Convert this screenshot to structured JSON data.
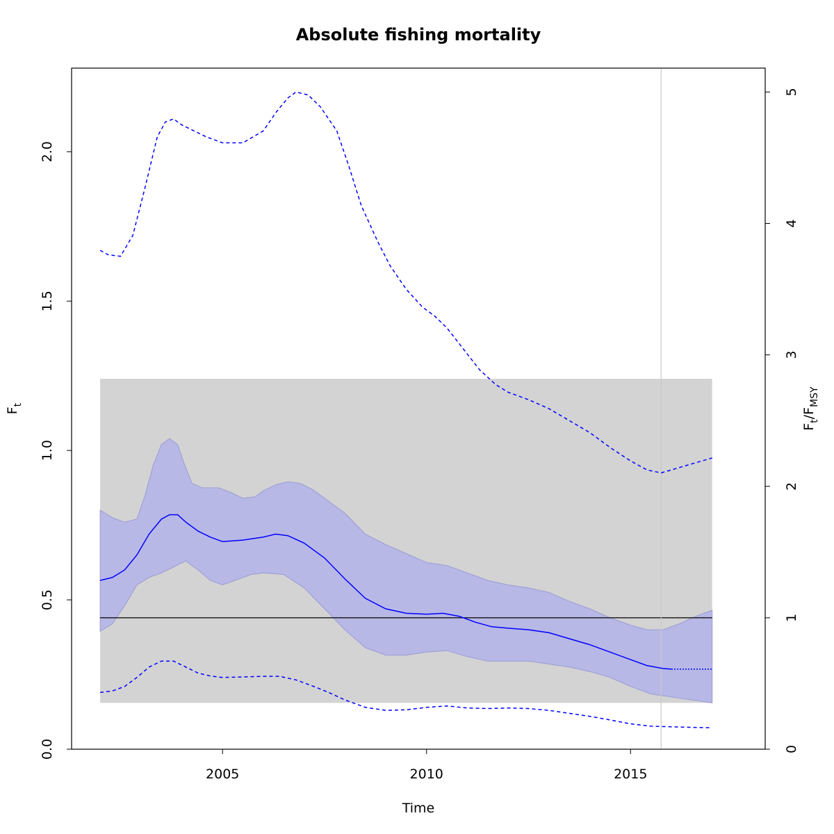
{
  "chart_data": {
    "type": "line",
    "title": "Absolute fishing mortality",
    "xlabel": "Time",
    "ylabel": "F",
    "ylabel_sub": "t",
    "y2label_main": "F",
    "y2label_sub1": "t",
    "y2label_sep": "/F",
    "y2label_sub2": "MSY",
    "xlim": [
      2001.3,
      2018.3
    ],
    "ylim": [
      0,
      2.28
    ],
    "x_ticks": [
      2005,
      2010,
      2015
    ],
    "y_ticks": [
      0.0,
      0.5,
      1.0,
      1.5,
      2.0
    ],
    "y_tick_labels": [
      "0.0",
      "0.5",
      "1.0",
      "1.5",
      "2.0"
    ],
    "y2_ticks": [
      0,
      1,
      2,
      3,
      4,
      5
    ],
    "fmsy": 0.44,
    "reference_band": {
      "x": [
        2002.0,
        2017.0
      ],
      "y": [
        0.155,
        1.24
      ],
      "color": "#d3d3d3"
    },
    "vertical_line_x": 2015.75,
    "colors": {
      "series": "#0000ff",
      "ci_fill": "#b8b8e6",
      "ci_edge": "#9a9ad6",
      "band": "#d3d3d3",
      "vline": "#c8c8c8",
      "ref": "#000000"
    },
    "series": [
      {
        "role": "estimate",
        "style": "solid",
        "x": [
          2002.0,
          2002.3,
          2002.6,
          2002.9,
          2003.2,
          2003.5,
          2003.7,
          2003.9,
          2004.1,
          2004.4,
          2004.7,
          2005.0,
          2005.5,
          2006.0,
          2006.3,
          2006.6,
          2007.0,
          2007.5,
          2008.0,
          2008.5,
          2009.0,
          2009.5,
          2010.0,
          2010.4,
          2010.8,
          2011.2,
          2011.6,
          2012.0,
          2012.5,
          2013.0,
          2013.5,
          2014.0,
          2014.5,
          2015.0,
          2015.4,
          2015.8,
          2016.0
        ],
        "y": [
          0.565,
          0.575,
          0.6,
          0.65,
          0.72,
          0.77,
          0.785,
          0.785,
          0.76,
          0.73,
          0.71,
          0.695,
          0.7,
          0.71,
          0.72,
          0.715,
          0.69,
          0.64,
          0.57,
          0.505,
          0.47,
          0.455,
          0.452,
          0.455,
          0.445,
          0.425,
          0.41,
          0.405,
          0.4,
          0.39,
          0.37,
          0.35,
          0.325,
          0.3,
          0.28,
          0.27,
          0.268
        ]
      },
      {
        "role": "prediction",
        "style": "dotted",
        "x": [
          2016.0,
          2017.0
        ],
        "y": [
          0.268,
          0.268
        ]
      },
      {
        "role": "ci_upper",
        "style": "dashed",
        "x": [
          2002.0,
          2002.2,
          2002.5,
          2002.8,
          2003.1,
          2003.4,
          2003.6,
          2003.8,
          2004.0,
          2004.3,
          2004.6,
          2005.0,
          2005.5,
          2006.0,
          2006.3,
          2006.6,
          2006.8,
          2007.1,
          2007.4,
          2007.8,
          2008.1,
          2008.4,
          2008.8,
          2009.1,
          2009.5,
          2009.9,
          2010.2,
          2010.5,
          2010.9,
          2011.3,
          2011.7,
          2012.0,
          2012.5,
          2013.0,
          2013.5,
          2014.0,
          2014.5,
          2015.0,
          2015.4,
          2015.75,
          2016.0,
          2016.5,
          2017.0
        ],
        "y": [
          1.67,
          1.655,
          1.65,
          1.72,
          1.88,
          2.05,
          2.1,
          2.11,
          2.09,
          2.07,
          2.05,
          2.03,
          2.03,
          2.07,
          2.13,
          2.18,
          2.2,
          2.19,
          2.15,
          2.07,
          1.95,
          1.82,
          1.7,
          1.62,
          1.54,
          1.48,
          1.45,
          1.41,
          1.34,
          1.27,
          1.22,
          1.195,
          1.17,
          1.14,
          1.1,
          1.06,
          1.01,
          0.965,
          0.935,
          0.925,
          0.935,
          0.955,
          0.975
        ]
      },
      {
        "role": "ci_lower",
        "style": "dashed",
        "x": [
          2002.0,
          2002.3,
          2002.6,
          2002.9,
          2003.2,
          2003.5,
          2003.8,
          2004.1,
          2004.4,
          2004.7,
          2005.0,
          2005.5,
          2006.0,
          2006.4,
          2006.8,
          2007.2,
          2007.6,
          2008.0,
          2008.5,
          2009.0,
          2009.5,
          2010.0,
          2010.5,
          2011.0,
          2011.5,
          2012.0,
          2012.5,
          2013.0,
          2013.5,
          2014.0,
          2014.5,
          2015.0,
          2015.5,
          2016.0,
          2016.5,
          2017.0
        ],
        "y": [
          0.19,
          0.195,
          0.21,
          0.24,
          0.275,
          0.295,
          0.295,
          0.275,
          0.255,
          0.245,
          0.24,
          0.242,
          0.244,
          0.244,
          0.232,
          0.212,
          0.19,
          0.165,
          0.14,
          0.13,
          0.132,
          0.14,
          0.145,
          0.138,
          0.136,
          0.138,
          0.136,
          0.13,
          0.12,
          0.11,
          0.098,
          0.085,
          0.077,
          0.075,
          0.073,
          0.072
        ]
      }
    ],
    "ci_band": {
      "upper_x": [
        2002.0,
        2002.3,
        2002.6,
        2002.9,
        2003.1,
        2003.3,
        2003.5,
        2003.7,
        2003.9,
        2004.05,
        2004.25,
        2004.5,
        2004.9,
        2005.2,
        2005.5,
        2005.8,
        2006.0,
        2006.3,
        2006.6,
        2006.9,
        2007.2,
        2007.6,
        2008.0,
        2008.5,
        2009.0,
        2009.5,
        2010.0,
        2010.5,
        2011.0,
        2011.5,
        2012.0,
        2012.5,
        2013.0,
        2013.5,
        2014.0,
        2014.5,
        2015.0,
        2015.4,
        2015.8,
        2016.2,
        2016.6,
        2017.0
      ],
      "upper_y": [
        0.8,
        0.775,
        0.76,
        0.77,
        0.85,
        0.95,
        1.02,
        1.04,
        1.02,
        0.96,
        0.89,
        0.875,
        0.875,
        0.86,
        0.84,
        0.845,
        0.865,
        0.885,
        0.895,
        0.89,
        0.87,
        0.83,
        0.79,
        0.72,
        0.685,
        0.655,
        0.625,
        0.615,
        0.59,
        0.565,
        0.55,
        0.54,
        0.525,
        0.495,
        0.47,
        0.44,
        0.415,
        0.4,
        0.4,
        0.42,
        0.445,
        0.465
      ],
      "lower_x": [
        2002.0,
        2002.3,
        2002.6,
        2002.9,
        2003.2,
        2003.5,
        2003.8,
        2004.1,
        2004.4,
        2004.7,
        2005.0,
        2005.3,
        2005.7,
        2006.0,
        2006.5,
        2007.0,
        2007.5,
        2008.0,
        2008.5,
        2009.0,
        2009.5,
        2010.0,
        2010.5,
        2011.0,
        2011.5,
        2012.0,
        2012.5,
        2013.0,
        2013.5,
        2014.0,
        2014.5,
        2015.0,
        2015.5,
        2016.0,
        2016.5,
        2017.0
      ],
      "lower_y": [
        0.395,
        0.42,
        0.48,
        0.55,
        0.575,
        0.59,
        0.61,
        0.63,
        0.6,
        0.565,
        0.55,
        0.565,
        0.585,
        0.59,
        0.585,
        0.54,
        0.47,
        0.4,
        0.34,
        0.315,
        0.315,
        0.325,
        0.33,
        0.31,
        0.295,
        0.295,
        0.295,
        0.285,
        0.275,
        0.26,
        0.24,
        0.21,
        0.185,
        0.175,
        0.165,
        0.155
      ]
    }
  }
}
